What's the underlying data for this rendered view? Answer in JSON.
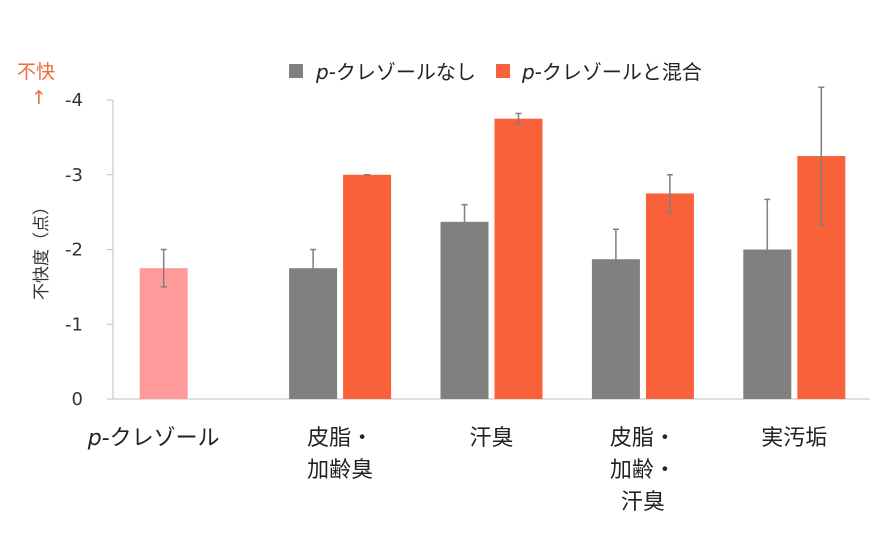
{
  "chart_data": {
    "type": "bar",
    "ylabel": "不快度（点）",
    "direction_label": "不快",
    "direction_arrow": "↑",
    "ylim": [
      0,
      -4
    ],
    "yticks": [
      0,
      -1,
      -2,
      -3,
      -4
    ],
    "categories": [
      {
        "lines": [
          "p-クレゾール"
        ],
        "italic": true
      },
      {
        "lines": [
          "皮脂・",
          "加齢臭"
        ]
      },
      {
        "lines": [
          "汗臭"
        ]
      },
      {
        "lines": [
          "皮脂・",
          "加齢・",
          "汗臭"
        ]
      },
      {
        "lines": [
          "実汚垢"
        ]
      }
    ],
    "reference": {
      "name": "p-クレゾール",
      "value": -1.75,
      "error": 0.25,
      "color": "#ff9a9a"
    },
    "series": [
      {
        "name_prefix": "p",
        "name_suffix": "-クレゾールなし",
        "color": "#808080",
        "values": [
          null,
          -1.75,
          -2.37,
          -1.87,
          -2.0
        ],
        "errors": [
          null,
          0.25,
          0.23,
          0.4,
          0.67
        ]
      },
      {
        "name_prefix": "p",
        "name_suffix": "-クレゾールと混合",
        "color": "#f8613a",
        "values": [
          null,
          -3.0,
          -3.75,
          -2.75,
          -3.25
        ],
        "errors": [
          null,
          0.0,
          0.07,
          0.25,
          0.92
        ]
      }
    ],
    "colors": {
      "axis": "#bfbfbf",
      "accent": "#f26b3c",
      "error_bar": "#7f7f7f"
    },
    "grid": false,
    "legend": "top"
  }
}
